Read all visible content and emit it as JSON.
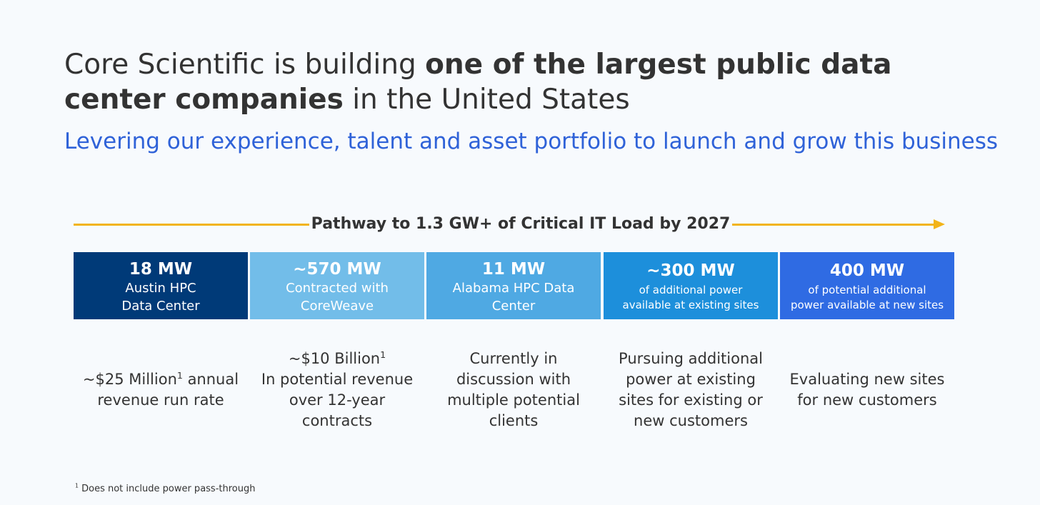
{
  "headline": {
    "part1": "Core Scientific is building ",
    "bold1": "one of the largest public data",
    "bold2": "center companies",
    "part2": " in the United States"
  },
  "subhead": "Levering our experience, talent and asset portfolio to launch and grow this business",
  "pathway_label": "Pathway to 1.3 GW+ of Critical IT Load by 2027",
  "boxes": [
    {
      "mw": "18 MW",
      "line1": "Austin HPC",
      "line2": "Data Center",
      "color": "#003a78"
    },
    {
      "mw": "~570 MW",
      "line1": "Contracted with",
      "line2": "CoreWeave",
      "color": "#72bde9"
    },
    {
      "mw": "11 MW",
      "line1": "Alabama HPC Data",
      "line2": "Center",
      "color": "#4fa9e3"
    },
    {
      "mw": "~300 MW",
      "line1": "of additional power",
      "line2": "available at existing sites",
      "color": "#1d8fdb"
    },
    {
      "mw": "400 MW",
      "line1": "of potential additional",
      "line2": "power available at new sites",
      "color": "#2f6be3"
    }
  ],
  "descriptions": {
    "c1": {
      "a": "~$25 Million",
      "sup": "1",
      "b": " annual",
      "c": "revenue run rate"
    },
    "c2": {
      "a": "~$10 Billion",
      "sup": "1",
      "b": "In potential revenue",
      "c": "over 12-year",
      "d": "contracts"
    },
    "c3": {
      "a": "Currently in",
      "b": "discussion with",
      "c": "multiple potential",
      "d": "clients"
    },
    "c4": {
      "a": "Pursuing additional",
      "b": "power at existing",
      "c": "sites for existing or",
      "d": "new customers"
    },
    "c5": {
      "a": "Evaluating new sites",
      "b": "for new customers"
    }
  },
  "footnote": {
    "sup": "1",
    "text": " Does not include power pass-through"
  }
}
